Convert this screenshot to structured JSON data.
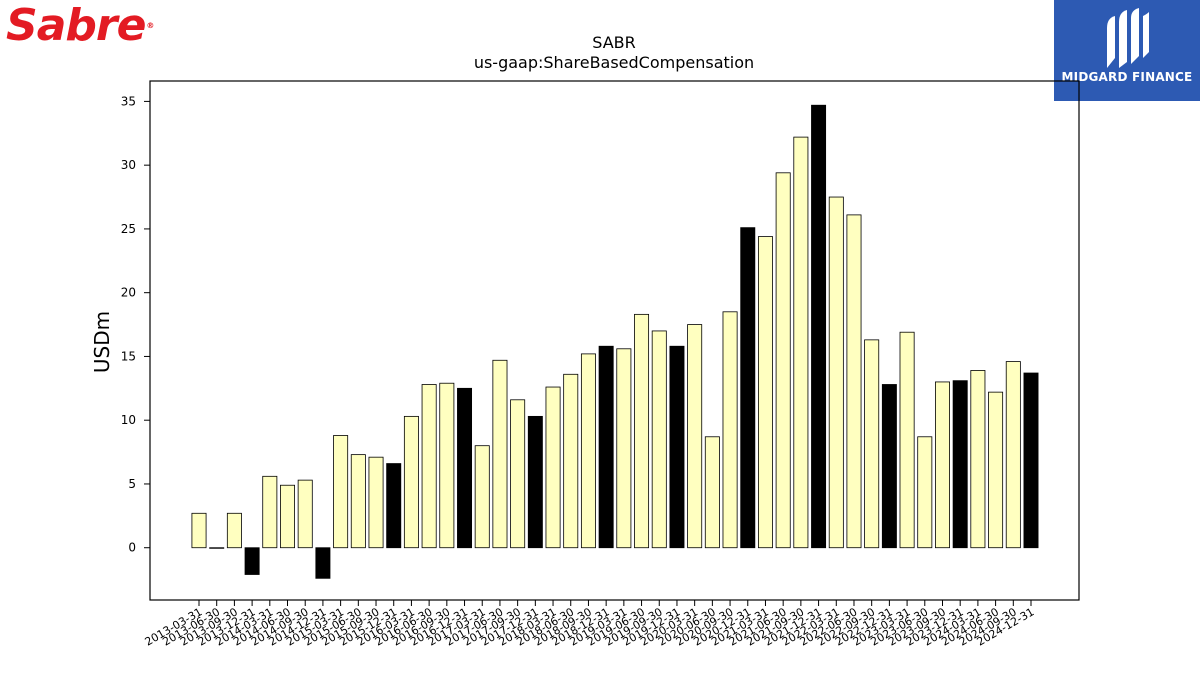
{
  "brand_left": {
    "name": "Sabre",
    "registered_mark": "®",
    "color": "#e31b23"
  },
  "brand_right": {
    "name": "MIDGARD FINANCE",
    "background": "#2d5ab3"
  },
  "chart_data": {
    "type": "bar",
    "title": "SABR",
    "subtitle": "us-gaap:ShareBasedCompensation",
    "ylabel": "USDm",
    "xlabel": "",
    "ylim": [
      -4.1,
      36.6
    ],
    "yticks": [
      0,
      5,
      10,
      15,
      20,
      25,
      30,
      35
    ],
    "categories": [
      "2013-03-31",
      "2013-06-30",
      "2013-09-30",
      "2013-12-31",
      "2014-03-31",
      "2014-06-30",
      "2014-09-30",
      "2014-12-31",
      "2015-03-31",
      "2015-06-30",
      "2015-09-30",
      "2015-12-31",
      "2016-03-31",
      "2016-06-30",
      "2016-09-30",
      "2016-12-31",
      "2017-03-31",
      "2017-06-30",
      "2017-09-30",
      "2017-12-31",
      "2018-03-31",
      "2018-06-30",
      "2018-09-30",
      "2018-12-31",
      "2019-03-31",
      "2019-06-30",
      "2019-09-30",
      "2019-12-31",
      "2020-03-31",
      "2020-06-30",
      "2020-09-30",
      "2020-12-31",
      "2021-03-31",
      "2021-06-30",
      "2021-09-30",
      "2021-12-31",
      "2022-03-31",
      "2022-06-30",
      "2022-09-30",
      "2022-12-31",
      "2023-03-31",
      "2023-06-30",
      "2023-09-30",
      "2023-12-31",
      "2024-03-31",
      "2024-06-30",
      "2024-09-30",
      "2024-12-31"
    ],
    "values": [
      2.7,
      0.0,
      2.7,
      -2.1,
      5.6,
      4.9,
      5.3,
      -2.4,
      8.8,
      7.3,
      7.1,
      6.6,
      10.3,
      12.8,
      12.9,
      12.5,
      8.0,
      14.7,
      11.6,
      10.3,
      12.6,
      13.6,
      15.2,
      15.8,
      15.6,
      18.3,
      17.0,
      15.8,
      17.5,
      8.7,
      18.5,
      25.1,
      24.4,
      29.4,
      32.2,
      34.7,
      27.5,
      26.1,
      16.3,
      12.8,
      16.9,
      8.7,
      13.0,
      13.1,
      13.9,
      12.2,
      14.6,
      13.7
    ],
    "colors": {
      "quarter": "#ffffc0",
      "year_end": "#000000",
      "edge": "#000000"
    },
    "grid": false,
    "legend": "none"
  }
}
